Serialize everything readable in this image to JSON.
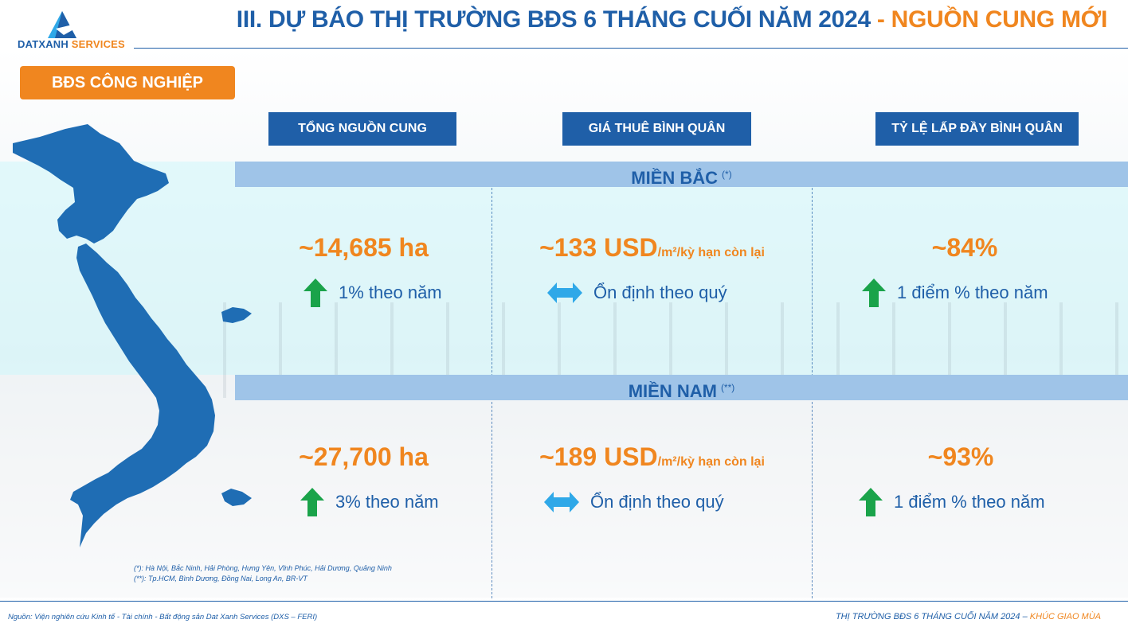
{
  "header": {
    "logo_main": "DATXANH",
    "logo_sub": " SERVICES",
    "title_main": "III. DỰ BÁO THỊ TRƯỜNG BĐS 6 THÁNG CUỐI NĂM 2024",
    "title_sep": " - ",
    "title_accent": "NGUỒN CUNG MỚI"
  },
  "badge": "BĐS CÔNG NGHIỆP",
  "columns": [
    "TỔNG NGUỒN CUNG",
    "GIÁ THUÊ BÌNH QUÂN",
    "TỶ LỆ LẤP ĐẦY BÌNH QUÂN"
  ],
  "regions": [
    {
      "name": "MIỀN BẮC",
      "note_mark": "(*)",
      "supply": {
        "value": "~14,685 ha",
        "trend_icon": "arrow-up-icon",
        "trend": "1% theo năm"
      },
      "rent": {
        "value": "~133 USD",
        "unit": "/m²/kỳ hạn còn lại",
        "trend_icon": "arrow-left-right-icon",
        "trend": "Ổn định theo quý"
      },
      "occupancy": {
        "value": "~84%",
        "trend_icon": "arrow-up-icon",
        "trend": "1 điểm % theo năm"
      }
    },
    {
      "name": "MIỀN NAM",
      "note_mark": "(**)",
      "supply": {
        "value": "~27,700 ha",
        "trend_icon": "arrow-up-icon",
        "trend": "3% theo năm"
      },
      "rent": {
        "value": "~189 USD",
        "unit": "/m²/kỳ hạn còn lại",
        "trend_icon": "arrow-left-right-icon",
        "trend": "Ổn định theo quý"
      },
      "occupancy": {
        "value": "~93%",
        "trend_icon": "arrow-up-icon",
        "trend": "1 điểm % theo năm"
      }
    }
  ],
  "notes": [
    "(*): Hà Nội, Bắc Ninh, Hải Phòng, Hưng Yên, Vĩnh Phúc, Hải Dương, Quảng Ninh",
    "(**): Tp.HCM, Bình Dương, Đồng Nai, Long An, BR-VT"
  ],
  "footer": {
    "source": "Nguồn: Viện nghiên cứu Kinh tế - Tài chính - Bất động sản Dat Xanh Services (DXS – FERI)",
    "right_main": "THỊ TRƯỜNG BĐS 6 THÁNG CUỐI NĂM 2024 – ",
    "right_accent": "KHÚC GIAO MÙA"
  },
  "colors": {
    "brand_blue": "#1f5fa8",
    "accent_orange": "#f0861f",
    "up_green": "#1aa34a",
    "stable_blue": "#2fa8e8",
    "region_bar": "#9fc4e8"
  }
}
